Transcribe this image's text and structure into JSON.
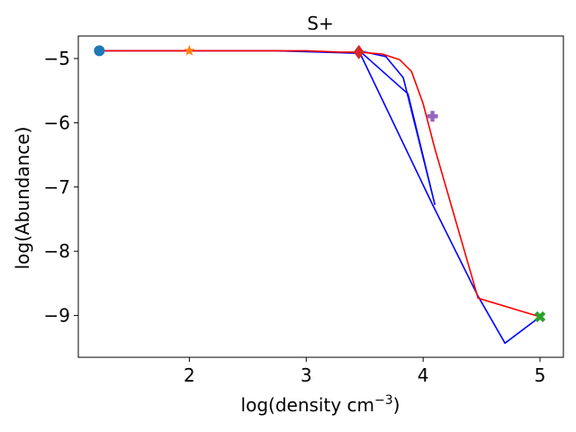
{
  "chart_data": {
    "type": "line",
    "title": "S+",
    "xlabel": "log(density cm",
    "xlabel_sup": "−3",
    "xlabel_end": ")",
    "ylabel": "log(Abundance)",
    "xlim": [
      1.05,
      5.2
    ],
    "ylim": [
      -9.65,
      -4.65
    ],
    "xticks": [
      2,
      3,
      4,
      5
    ],
    "xtick_labels": [
      "2",
      "3",
      "4",
      "5"
    ],
    "yticks": [
      -5,
      -6,
      -7,
      -8,
      -9
    ],
    "ytick_labels": [
      "−5",
      "−6",
      "−7",
      "−8",
      "−9"
    ],
    "grid": false,
    "series": [
      {
        "color": "#0000ff",
        "x": [
          1.23,
          2.0,
          2.75,
          3.48,
          3.87,
          4.1,
          3.83,
          3.68,
          3.45,
          4.08,
          4.47,
          4.7,
          5.0
        ],
        "y": [
          -4.88,
          -4.88,
          -4.88,
          -4.92,
          -5.55,
          -7.27,
          -5.3,
          -4.97,
          -4.88,
          -7.27,
          -8.7,
          -9.43,
          -9.02
        ]
      },
      {
        "color": "#ff0000",
        "x": [
          1.23,
          2.0,
          2.5,
          3.0,
          3.3,
          3.45,
          3.65,
          3.8,
          3.9,
          4.0,
          4.1,
          4.47,
          5.0
        ],
        "y": [
          -4.88,
          -4.88,
          -4.88,
          -4.88,
          -4.9,
          -4.9,
          -4.93,
          -5.02,
          -5.2,
          -5.7,
          -6.4,
          -8.73,
          -9.02
        ]
      }
    ],
    "markers": [
      {
        "shape": "circle",
        "color": "#1f77b4",
        "x": 1.23,
        "y": -4.88
      },
      {
        "shape": "star",
        "color": "#ff7f0e",
        "x": 2.0,
        "y": -4.88
      },
      {
        "shape": "x-filled",
        "color": "#2ca02c",
        "x": 5.0,
        "y": -9.02
      },
      {
        "shape": "diamond",
        "color": "#d62728",
        "x": 3.45,
        "y": -4.9
      },
      {
        "shape": "plus-filled",
        "color": "#9467bd",
        "x": 4.08,
        "y": -5.9
      }
    ]
  }
}
